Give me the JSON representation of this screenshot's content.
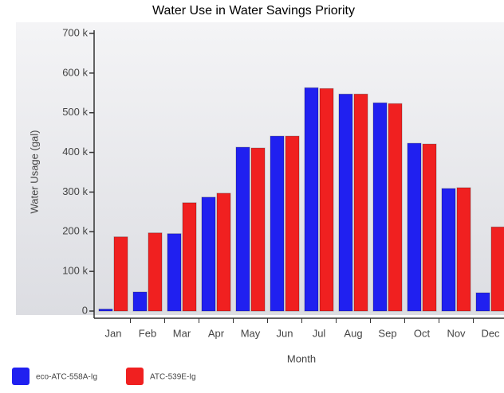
{
  "chart_data": {
    "type": "bar",
    "title": "Water Use in Water Savings Priority",
    "x_label": "Month",
    "y_label": "Water Usage (gal)",
    "categories": [
      "Jan",
      "Feb",
      "Mar",
      "Apr",
      "May",
      "Jun",
      "Jul",
      "Aug",
      "Sep",
      "Oct",
      "Nov",
      "Dec"
    ],
    "series": [
      {
        "name": "eco-ATC-558A-Ig",
        "color": "#2020f0",
        "values": [
          5000,
          48000,
          195000,
          287000,
          413000,
          441000,
          563000,
          547000,
          525000,
          423000,
          309000,
          46000
        ]
      },
      {
        "name": "ATC-539E-Ig",
        "color": "#f02020",
        "values": [
          187000,
          197000,
          273000,
          297000,
          411000,
          441000,
          561000,
          547000,
          523000,
          421000,
          311000,
          212000
        ]
      }
    ],
    "ylim": [
      0,
      700000
    ],
    "yticks": [
      {
        "value": 0,
        "label": "0"
      },
      {
        "value": 100000,
        "label": "100 k"
      },
      {
        "value": 200000,
        "label": "200 k"
      },
      {
        "value": 300000,
        "label": "300 k"
      },
      {
        "value": 400000,
        "label": "400 k"
      },
      {
        "value": 500000,
        "label": "500 k"
      },
      {
        "value": 600000,
        "label": "600 k"
      },
      {
        "value": 700000,
        "label": "700 k"
      }
    ],
    "grid": false,
    "legend": "bottom-left"
  }
}
